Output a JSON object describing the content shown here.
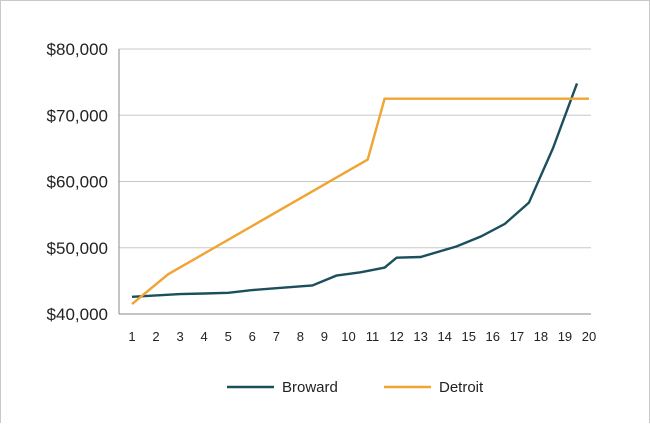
{
  "chart_data": {
    "type": "line",
    "title": "",
    "xlabel": "",
    "ylabel": "",
    "x": [
      1,
      2,
      3,
      4,
      5,
      6,
      7,
      8,
      9,
      10,
      11,
      12,
      13,
      14,
      15,
      16,
      17,
      18,
      19,
      20
    ],
    "x_tick_labels": [
      "1",
      "2",
      "3",
      "4",
      "5",
      "6",
      "7",
      "8",
      "9",
      "10",
      "11",
      "12",
      "13",
      "14",
      "15",
      "16",
      "17",
      "18",
      "19",
      "20"
    ],
    "y_tick_labels": [
      "$40,000",
      "$50,000",
      "$60,000",
      "$70,000",
      "$80,000"
    ],
    "y_ticks": [
      40000,
      50000,
      60000,
      70000,
      80000
    ],
    "ylim": [
      40000,
      80000
    ],
    "grid": "horizontal",
    "legend_position": "bottom",
    "series": [
      {
        "name": "Broward",
        "color": "#1c4f5c",
        "points": [
          [
            1,
            42600
          ],
          [
            3,
            43000
          ],
          [
            4,
            43100
          ],
          [
            5,
            43200
          ],
          [
            6,
            43600
          ],
          [
            7,
            43900
          ],
          [
            8.5,
            44300
          ],
          [
            9.5,
            45800
          ],
          [
            10.5,
            46300
          ],
          [
            11.5,
            47000
          ],
          [
            12,
            48500
          ],
          [
            13,
            48600
          ],
          [
            14.5,
            50200
          ],
          [
            15.5,
            51700
          ],
          [
            16.5,
            53600
          ],
          [
            17.5,
            56800
          ],
          [
            18.5,
            65000
          ],
          [
            19.5,
            74800
          ]
        ]
      },
      {
        "name": "Detroit",
        "color": "#f0a431",
        "points": [
          [
            1,
            41500
          ],
          [
            2.5,
            46000
          ],
          [
            10.8,
            63300
          ],
          [
            11.5,
            72500
          ],
          [
            20,
            72500
          ]
        ]
      }
    ]
  }
}
